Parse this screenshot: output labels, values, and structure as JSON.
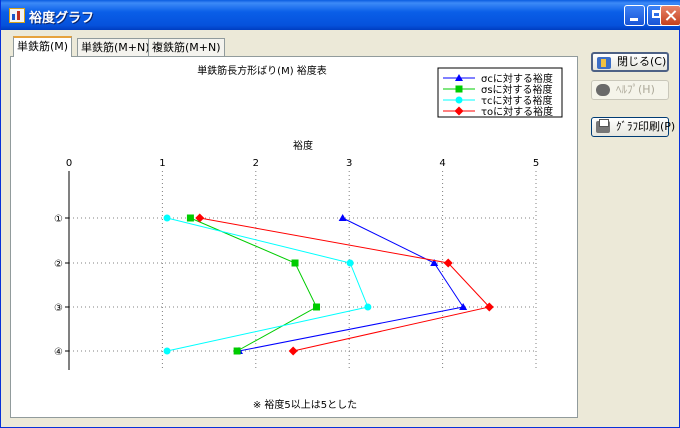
{
  "window": {
    "title": "裕度グラフ"
  },
  "tabs": [
    {
      "label": "単鉄筋(M)",
      "active": true
    },
    {
      "label": "単鉄筋(M+N)",
      "active": false
    },
    {
      "label": "複鉄筋(M+N)",
      "active": false
    }
  ],
  "buttons": {
    "close": "閉じる(C)",
    "help": "ﾍﾙﾌﾟ(H)",
    "print": "ｸﾞﾗﾌ印刷(P)"
  },
  "chart_data": {
    "type": "line",
    "title": "単鉄筋長方形ばり(M)  裕度表",
    "xlabel": "裕度",
    "note": "※ 裕度5以上は5とした",
    "x_ticks": [
      "0",
      "1",
      "2",
      "3",
      "4",
      "5"
    ],
    "xlim": [
      0,
      5
    ],
    "categories": [
      "①",
      "②",
      "③",
      "④"
    ],
    "grid": true,
    "legend": "top-right",
    "orientation": "horizontal",
    "series": [
      {
        "name": "σcに対する裕度",
        "color": "#0000ff",
        "marker": "triangle",
        "values": [
          2.93,
          3.91,
          4.22,
          1.82
        ]
      },
      {
        "name": "σsに対する裕度",
        "color": "#00cc00",
        "marker": "square",
        "values": [
          1.3,
          2.42,
          2.65,
          1.8
        ]
      },
      {
        "name": "τcに対する裕度",
        "color": "#00ffff",
        "marker": "circle",
        "values": [
          1.05,
          3.01,
          3.2,
          1.05
        ]
      },
      {
        "name": "τoに対する裕度",
        "color": "#ff0000",
        "marker": "diamond",
        "values": [
          1.4,
          4.06,
          4.5,
          2.4
        ]
      }
    ]
  }
}
